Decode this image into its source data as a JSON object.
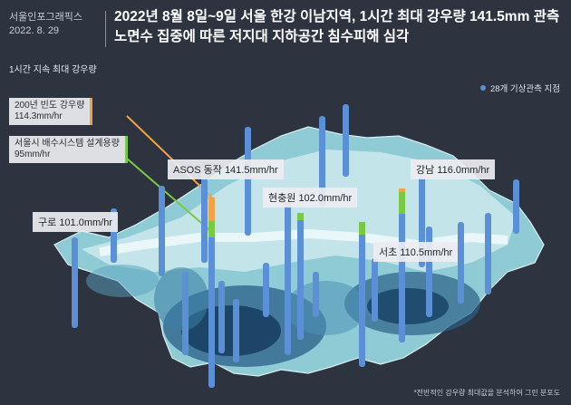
{
  "brand": {
    "name": "서울인포그래픽스",
    "date": "2022. 8. 29"
  },
  "title": {
    "line1": "2022년 8월 8일~9일 서울 한강 이남지역, 1시간 최대 강우량 141.5mm 관측",
    "line2": "노면수 집중에 따른 저지대 지하공간 침수피해 심각"
  },
  "subtitle": "1시간 지속 최대 강우량",
  "legend": {
    "label": "28개 기상관측 지점",
    "color": "#5b8fd6"
  },
  "reference_lines": [
    {
      "label": "200년 빈도 강우량",
      "value": "114.3mm/hr",
      "color": "#f0a244"
    },
    {
      "label": "서울시 배수시스템 설계용량",
      "value": "95mm/hr",
      "color": "#7ac943"
    }
  ],
  "stations": [
    {
      "name": "ASOS 동작",
      "value": "141.5mm/hr"
    },
    {
      "name": "강남",
      "value": "116.0mm/hr"
    },
    {
      "name": "현충원",
      "value": "102.0mm/hr"
    },
    {
      "name": "구로",
      "value": "101.0mm/hr"
    },
    {
      "name": "서초",
      "value": "110.5mm/hr"
    }
  ],
  "note": "*전반적인 강우량 최대값을 분석하여 그린 분포도",
  "colors": {
    "background": "#2e3340",
    "bar": "#5b8fd6",
    "above_design": "#7ac943",
    "above_200yr": "#f0a244"
  }
}
